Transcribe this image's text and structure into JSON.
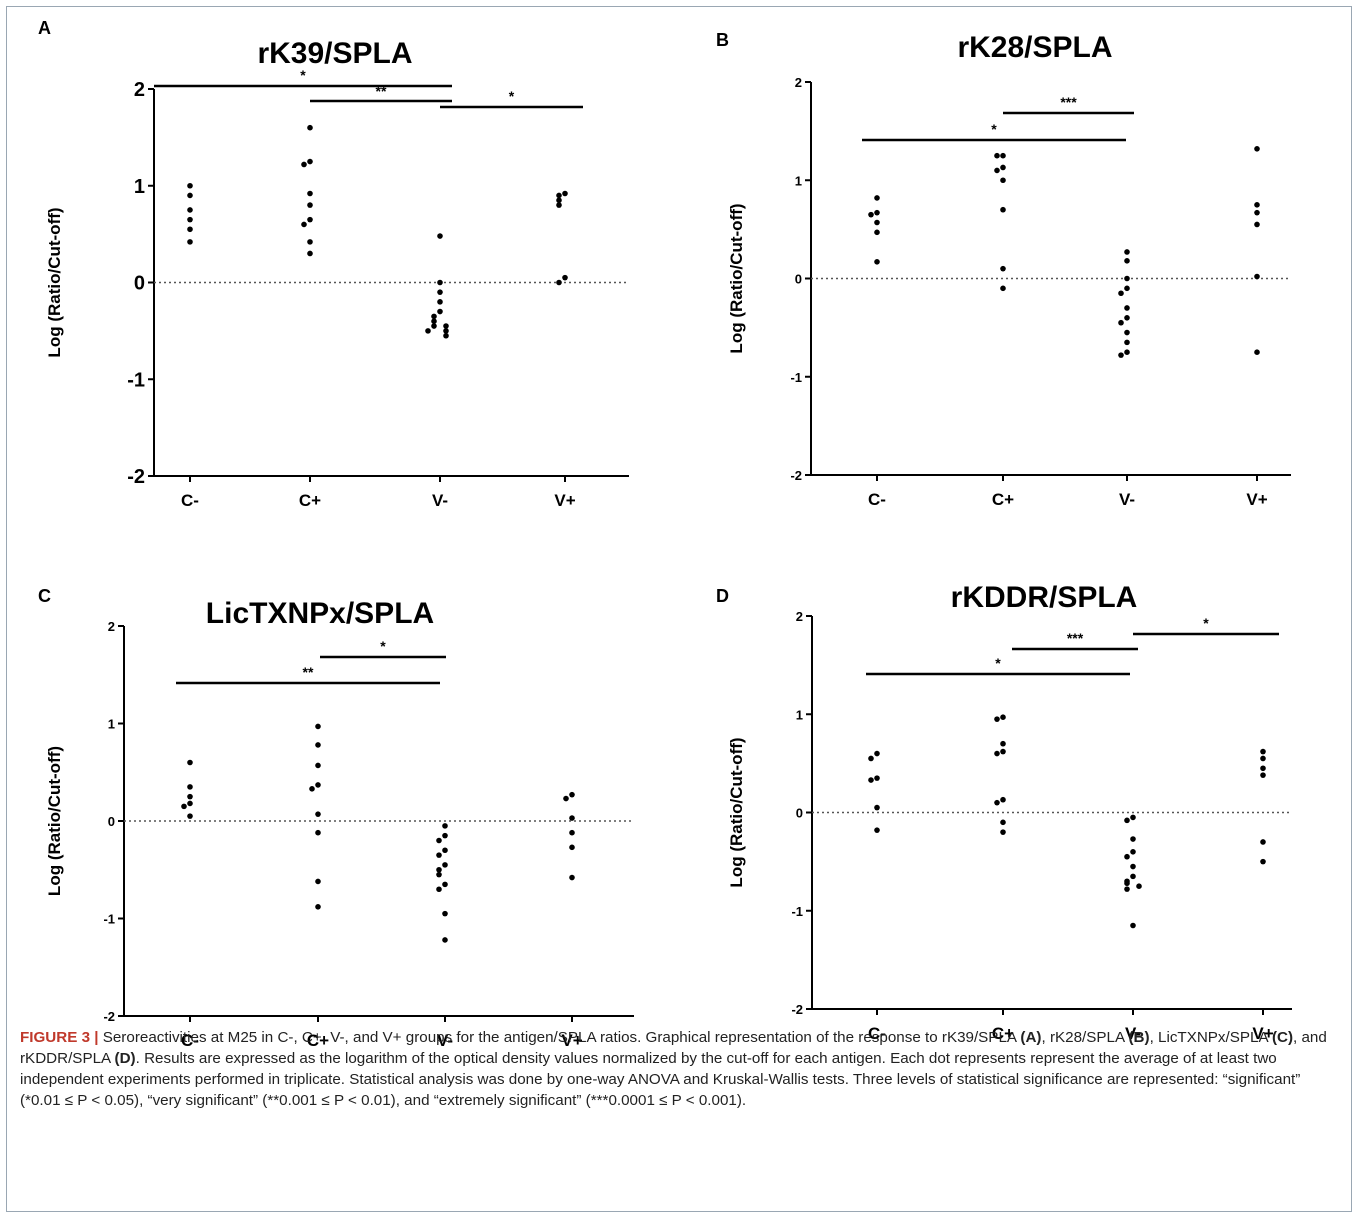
{
  "chart_data": [
    {
      "panel": "A",
      "type": "scatter",
      "title": "rK39/SPLA",
      "ylabel": "Log (Ratio/Cut-off)",
      "ylim": [
        -2,
        2
      ],
      "yticks": [
        "-2",
        "-1",
        "0",
        "1",
        "2"
      ],
      "categories": [
        "C-",
        "C+",
        "V-",
        "V+"
      ],
      "points": [
        [
          1.0,
          0.9,
          0.75,
          0.65,
          0.55,
          0.42
        ],
        [
          1.6,
          1.25,
          1.22,
          0.92,
          0.8,
          0.65,
          0.6,
          0.42,
          0.3
        ],
        [
          0.48,
          0.0,
          -0.1,
          -0.2,
          -0.3,
          -0.35,
          -0.4,
          -0.45,
          -0.45,
          -0.5,
          -0.55,
          -0.5
        ],
        [
          0.92,
          0.9,
          0.85,
          0.8,
          0.05,
          0.0
        ]
      ],
      "significance": [
        {
          "from": "C-",
          "to": "V-",
          "label": "*"
        },
        {
          "from": "C+",
          "to": "V-",
          "label": "**"
        },
        {
          "from": "V-",
          "to": "V+",
          "label": "*"
        }
      ]
    },
    {
      "panel": "B",
      "type": "scatter",
      "title": "rK28/SPLA",
      "ylabel": "Log (Ratio/Cut-off)",
      "ylim": [
        -2,
        2
      ],
      "yticks": [
        "-2",
        "-1",
        "0",
        "1",
        "2"
      ],
      "categories": [
        "C-",
        "C+",
        "V-",
        "V+"
      ],
      "points": [
        [
          0.82,
          0.67,
          0.65,
          0.57,
          0.47,
          0.17
        ],
        [
          1.25,
          1.25,
          1.13,
          1.1,
          1.0,
          0.7,
          0.1,
          -0.1
        ],
        [
          0.27,
          0.18,
          0.0,
          -0.1,
          -0.15,
          -0.3,
          -0.4,
          -0.45,
          -0.55,
          -0.65,
          -0.75,
          -0.78
        ],
        [
          1.32,
          0.75,
          0.67,
          0.55,
          0.02,
          -0.75
        ]
      ],
      "significance": [
        {
          "from": "C-",
          "to": "V-",
          "label": "*"
        },
        {
          "from": "C+",
          "to": "V-",
          "label": "***"
        }
      ]
    },
    {
      "panel": "C",
      "type": "scatter",
      "title": "LicTXNPx/SPLA",
      "ylabel": "Log (Ratio/Cut-off)",
      "ylim": [
        -2,
        2
      ],
      "yticks": [
        "-2",
        "-1",
        "0",
        "1",
        "2"
      ],
      "categories": [
        "C-",
        "C+",
        "V-",
        "V+"
      ],
      "points": [
        [
          0.6,
          0.35,
          0.25,
          0.18,
          0.15,
          0.05
        ],
        [
          0.97,
          0.78,
          0.57,
          0.37,
          0.33,
          0.07,
          -0.12,
          -0.62,
          -0.88
        ],
        [
          -0.05,
          -0.15,
          -0.2,
          -0.3,
          -0.35,
          -0.45,
          -0.5,
          -0.55,
          -0.65,
          -0.7,
          -0.95,
          -1.22
        ],
        [
          0.27,
          0.23,
          0.03,
          -0.12,
          -0.27,
          -0.58
        ]
      ],
      "significance": [
        {
          "from": "C-",
          "to": "V-",
          "label": "**"
        },
        {
          "from": "C+",
          "to": "V-",
          "label": "*"
        }
      ]
    },
    {
      "panel": "D",
      "type": "scatter",
      "title": "rKDDR/SPLA",
      "ylabel": "Log (Ratio/Cut-off)",
      "ylim": [
        -2,
        2
      ],
      "yticks": [
        "-2",
        "-1",
        "0",
        "1",
        "2"
      ],
      "categories": [
        "C-",
        "C+",
        "V-",
        "V+"
      ],
      "points": [
        [
          0.6,
          0.55,
          0.35,
          0.33,
          0.05,
          -0.18
        ],
        [
          0.97,
          0.95,
          0.7,
          0.62,
          0.6,
          0.13,
          0.1,
          -0.1,
          -0.2
        ],
        [
          -0.05,
          -0.08,
          -0.27,
          -0.4,
          -0.45,
          -0.55,
          -0.65,
          -0.7,
          -0.72,
          -0.75,
          -0.78,
          -1.15
        ],
        [
          0.62,
          0.55,
          0.45,
          0.38,
          -0.3,
          -0.5
        ]
      ],
      "significance": [
        {
          "from": "C-",
          "to": "V-",
          "label": "*"
        },
        {
          "from": "C+",
          "to": "V-",
          "label": "***"
        },
        {
          "from": "V-",
          "to": "V+",
          "label": "*"
        }
      ]
    }
  ],
  "caption": {
    "figure_label": "FIGURE 3 |",
    "text_1": " Seroreactivities at M25 in C-, C+, V-, and V+ groups for the antigen/SPLA ratios. Graphical representation of the response to rK39/SPLA ",
    "ref_a": "(A)",
    "text_2": ", rK28/SPLA ",
    "ref_b": "(B)",
    "text_3": ", LicTXNPx/SPLA ",
    "ref_c": "(C)",
    "text_4": ", and rKDDR/SPLA ",
    "ref_d": "(D)",
    "text_5": ". Results are expressed as the logarithm of the optical density values normalized by the cut-off for each antigen. Each dot represents represent the average of at least two independent experiments performed in triplicate. Statistical analysis was done by one-way ANOVA and Kruskal-Wallis tests. Three levels of statistical significance are represented: “significant” (*0.01 ≤ P < 0.05), “very significant” (**0.001 ≤ P < 0.01), and “extremely significant” (***0.0001 ≤ P < 0.001)."
  }
}
